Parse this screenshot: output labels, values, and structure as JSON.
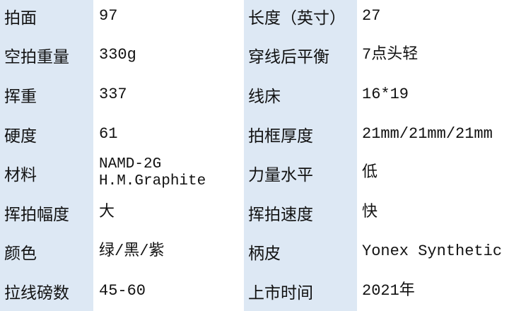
{
  "rows": [
    {
      "label1": "拍面",
      "value1": "97",
      "label2": "长度（英寸）",
      "value2": "27"
    },
    {
      "label1": "空拍重量",
      "value1": "330g",
      "label2": "穿线后平衡",
      "value2": "7点头轻"
    },
    {
      "label1": "挥重",
      "value1": "337",
      "label2": "线床",
      "value2": "16*19"
    },
    {
      "label1": "硬度",
      "value1": "61",
      "label2": "拍框厚度",
      "value2": "21mm/21mm/21mm"
    },
    {
      "label1": "材料",
      "value1_lines": [
        "NAMD-2G",
        "H.M.Graphite"
      ],
      "label2": "力量水平",
      "value2": "低"
    },
    {
      "label1": "挥拍幅度",
      "value1": "大",
      "label2": "挥拍速度",
      "value2": "快"
    },
    {
      "label1": "颜色",
      "value1": "绿/黑/紫",
      "label2": "柄皮",
      "value2": "Yonex Synthetic"
    },
    {
      "label1": "拉线磅数",
      "value1": "45-60",
      "label2": "上市时间",
      "value2": "2021年"
    }
  ],
  "colors": {
    "label_bg": "#dde8f4",
    "value_bg": "#ffffff"
  }
}
